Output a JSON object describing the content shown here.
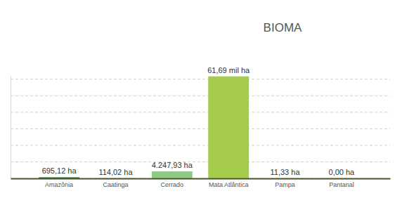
{
  "chart_data": {
    "type": "bar",
    "title": "BIOMA",
    "categories": [
      "Amazônia",
      "Caatinga",
      "Cerrado",
      "Mata Atlântica",
      "Pampa",
      "Pantanal"
    ],
    "values": [
      695.12,
      114.02,
      4247.93,
      61690,
      11.33,
      0
    ],
    "value_labels": [
      "695,12 ha",
      "114,02 ha",
      "4.247,93 ha",
      "61,69 mil ha",
      "11,33 ha",
      "0,00 ha"
    ],
    "colors": [
      "#2e7d4a",
      "#c2b060",
      "#8cc985",
      "#a6cc4c",
      "#b5d98f",
      "#6aa9c9"
    ],
    "ylim": [
      0,
      62000
    ],
    "yticks": [
      0,
      10000,
      20000,
      30000,
      40000,
      50000,
      60000
    ],
    "grid": true,
    "data_labels": true,
    "tick_labels": "x"
  }
}
